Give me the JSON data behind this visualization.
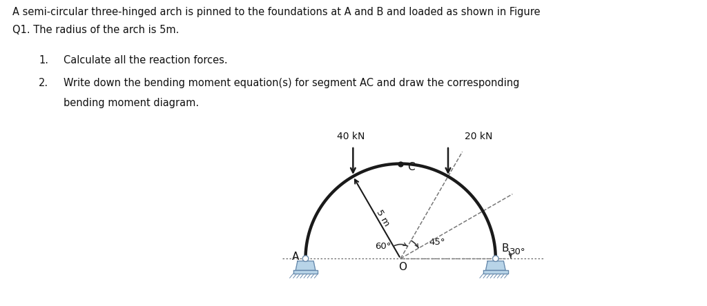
{
  "title_text": "A semi-circular three-hinged arch is pinned to the foundations at A and B and loaded as shown in Figure",
  "title_text2": "Q1. The radius of the arch is 5m.",
  "item1": "Calculate all the reaction forces.",
  "item2_line1": "Write down the bending moment equation(s) for segment AC and draw the corresponding",
  "item2_line2": "bending moment diagram.",
  "bg_color": "#ffffff",
  "arch_color": "#1a1a1a",
  "arch_linewidth": 3.2,
  "support_color": "#b8d4e8",
  "support_color_dark": "#6688aa",
  "load1_kN": "40 kN",
  "load2_kN": "20 kN",
  "angle_60_label": "60°",
  "angle_45_label": "45°",
  "angle_30_label": "30°",
  "radius_label": "5 m",
  "label_A": "A",
  "label_B": "B",
  "label_C": "C",
  "label_O": "O",
  "text_color": "#111111",
  "dashed_color": "#777777",
  "arc_color": "#333333"
}
